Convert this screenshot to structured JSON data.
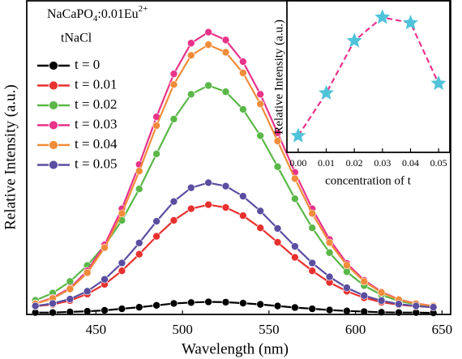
{
  "chart_data": [
    {
      "type": "line",
      "annotation": [
        "NaCaPO",
        "4",
        ":0.01Eu",
        "2+"
      ],
      "legend_title": "tNaCl",
      "x_label": "Wavelength (nm)",
      "y_label": "Relative Intensity (a.u.)",
      "x": [
        415,
        425,
        435,
        445,
        455,
        465,
        475,
        485,
        495,
        505,
        515,
        525,
        535,
        545,
        555,
        565,
        575,
        585,
        595,
        605,
        615,
        625,
        635,
        645
      ],
      "xlim": [
        410,
        655
      ],
      "xticks": [
        450,
        500,
        550,
        600,
        650
      ],
      "ylim": [
        0,
        100
      ],
      "legend_position": "upper left",
      "series": [
        {
          "name": "t = 0",
          "color": "#000000",
          "values": [
            0.6,
            0.6,
            0.8,
            1.0,
            1.3,
            1.8,
            2.3,
            2.9,
            3.5,
            3.8,
            4.0,
            3.9,
            3.6,
            3.2,
            2.7,
            2.2,
            1.8,
            1.4,
            1.1,
            0.9,
            0.7,
            0.6,
            0.6,
            0.5
          ]
        },
        {
          "name": "t = 0.01",
          "color": "#e8312f",
          "values": [
            2.6,
            3.2,
            4.4,
            6.5,
            9.6,
            13.9,
            19.2,
            24.9,
            30.0,
            33.7,
            35.0,
            34.1,
            31.5,
            27.6,
            23.0,
            18.2,
            13.9,
            10.2,
            7.4,
            5.3,
            3.9,
            3.1,
            2.6,
            2.3
          ]
        },
        {
          "name": "t = 0.02",
          "color": "#5ab748",
          "values": [
            4.5,
            6.8,
            10.5,
            15.6,
            22.0,
            30.0,
            40.0,
            51.2,
            62.3,
            70.2,
            73.0,
            71.0,
            65.4,
            57.0,
            47.1,
            36.9,
            27.6,
            19.7,
            13.6,
            9.2,
            6.2,
            4.3,
            3.2,
            2.6
          ]
        },
        {
          "name": "t = 0.03",
          "color": "#e8338a",
          "values": [
            3.5,
            5.3,
            8.4,
            13.9,
            22.2,
            33.7,
            47.8,
            63.0,
            76.7,
            86.5,
            90.0,
            87.5,
            80.6,
            70.2,
            57.9,
            45.3,
            33.7,
            23.9,
            16.3,
            10.9,
            7.2,
            4.8,
            3.5,
            2.7
          ]
        },
        {
          "name": "t = 0.04",
          "color": "#f08c3a",
          "values": [
            3.4,
            5.1,
            8.1,
            13.3,
            21.3,
            32.2,
            45.7,
            60.2,
            73.3,
            82.6,
            86.0,
            83.6,
            77.0,
            67.1,
            55.3,
            43.3,
            32.2,
            22.9,
            15.7,
            10.5,
            7.0,
            4.7,
            3.4,
            2.7
          ]
        },
        {
          "name": "t = 0.05",
          "color": "#5a4ea0",
          "values": [
            2.7,
            3.5,
            4.9,
            7.4,
            11.2,
            16.4,
            22.8,
            29.7,
            36.0,
            40.4,
            42.0,
            40.9,
            37.7,
            33.0,
            27.4,
            21.7,
            16.4,
            12.0,
            8.5,
            6.0,
            4.4,
            3.3,
            2.7,
            2.3
          ]
        }
      ]
    },
    {
      "type": "line",
      "x_label": "concentration of t",
      "y_label": "Relative Intensity (a.u.)",
      "x": [
        0,
        0.01,
        0.02,
        0.03,
        0.04,
        0.05
      ],
      "values": [
        4,
        35,
        73,
        90,
        86,
        42
      ],
      "xlim": [
        -0.004,
        0.054
      ],
      "xticks": [
        {
          "value": 0,
          "label": "0.00"
        },
        {
          "value": 0.01,
          "label": "0.01"
        },
        {
          "value": 0.02,
          "label": "0.02"
        },
        {
          "value": 0.03,
          "label": "0.03"
        },
        {
          "value": 0.04,
          "label": "0.04"
        },
        {
          "value": 0.05,
          "label": "0.05"
        }
      ],
      "ylim": [
        -8,
        102
      ],
      "color": "#e8338a",
      "marker_color": "#4fc3d9",
      "marker": "star",
      "line_style": "dashed"
    }
  ]
}
